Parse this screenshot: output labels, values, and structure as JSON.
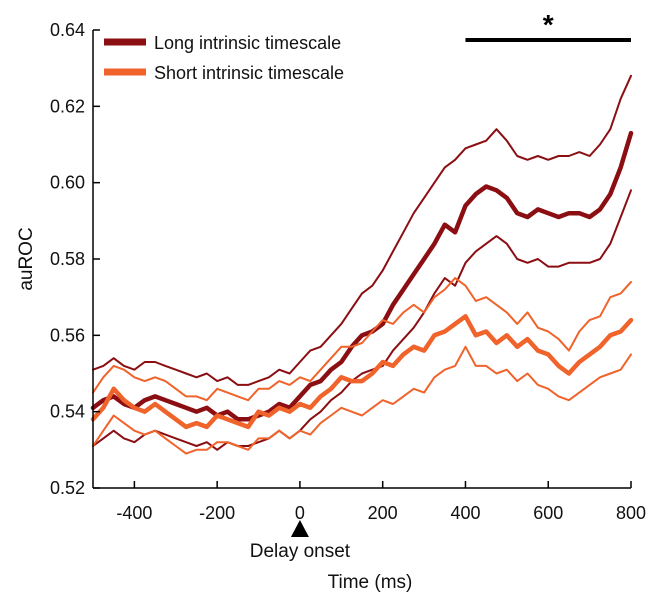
{
  "chart_data": {
    "type": "line",
    "xlabel": "Time (ms)",
    "ylabel": "auROC",
    "xlim": [
      -500,
      800
    ],
    "ylim": [
      0.52,
      0.64
    ],
    "xticks": [
      -400,
      -200,
      0,
      200,
      400,
      600,
      800
    ],
    "xtick_labels": [
      "-400",
      "-200",
      "0",
      "200",
      "400",
      "600",
      "800"
    ],
    "yticks": [
      0.52,
      0.54,
      0.56,
      0.58,
      0.6,
      0.62,
      0.64
    ],
    "ytick_labels": [
      "0.52",
      "0.54",
      "0.56",
      "0.58",
      "0.60",
      "0.62",
      "0.64"
    ],
    "legend_position": "top-left",
    "annotations": {
      "event_marker": {
        "x": 0,
        "label": "Delay onset",
        "symbol": "triangle-up"
      },
      "significance": {
        "x_start": 400,
        "x_end": 800,
        "label": "*"
      }
    },
    "x": [
      -500,
      -475,
      -450,
      -425,
      -400,
      -375,
      -350,
      -325,
      -300,
      -275,
      -250,
      -225,
      -200,
      -175,
      -150,
      -125,
      -100,
      -75,
      -50,
      -25,
      0,
      25,
      50,
      75,
      100,
      125,
      150,
      175,
      200,
      225,
      250,
      275,
      300,
      325,
      350,
      375,
      400,
      425,
      450,
      475,
      500,
      525,
      550,
      575,
      600,
      625,
      650,
      675,
      700,
      725,
      750,
      775,
      800
    ],
    "series": [
      {
        "name": "Long intrinsic timescale",
        "color": "#8b0e12",
        "mean": [
          0.541,
          0.543,
          0.544,
          0.542,
          0.541,
          0.543,
          0.544,
          0.543,
          0.542,
          0.541,
          0.54,
          0.541,
          0.539,
          0.54,
          0.538,
          0.538,
          0.539,
          0.54,
          0.542,
          0.541,
          0.544,
          0.547,
          0.548,
          0.551,
          0.553,
          0.557,
          0.56,
          0.561,
          0.563,
          0.568,
          0.572,
          0.576,
          0.58,
          0.584,
          0.589,
          0.587,
          0.594,
          0.597,
          0.599,
          0.598,
          0.596,
          0.592,
          0.591,
          0.593,
          0.592,
          0.591,
          0.592,
          0.592,
          0.591,
          0.593,
          0.597,
          0.604,
          0.613
        ],
        "upper": [
          0.551,
          0.552,
          0.554,
          0.552,
          0.551,
          0.553,
          0.553,
          0.552,
          0.551,
          0.55,
          0.549,
          0.55,
          0.548,
          0.549,
          0.547,
          0.547,
          0.548,
          0.549,
          0.551,
          0.55,
          0.553,
          0.556,
          0.557,
          0.56,
          0.563,
          0.567,
          0.571,
          0.573,
          0.577,
          0.582,
          0.587,
          0.592,
          0.596,
          0.6,
          0.604,
          0.606,
          0.609,
          0.61,
          0.611,
          0.614,
          0.611,
          0.607,
          0.606,
          0.607,
          0.606,
          0.607,
          0.607,
          0.608,
          0.607,
          0.61,
          0.614,
          0.622,
          0.628
        ],
        "lower": [
          0.531,
          0.533,
          0.535,
          0.533,
          0.532,
          0.534,
          0.535,
          0.534,
          0.533,
          0.532,
          0.531,
          0.532,
          0.53,
          0.532,
          0.531,
          0.531,
          0.532,
          0.533,
          0.535,
          0.533,
          0.535,
          0.538,
          0.54,
          0.543,
          0.545,
          0.548,
          0.55,
          0.551,
          0.552,
          0.556,
          0.559,
          0.562,
          0.566,
          0.571,
          0.575,
          0.573,
          0.579,
          0.582,
          0.584,
          0.586,
          0.584,
          0.58,
          0.579,
          0.58,
          0.578,
          0.578,
          0.579,
          0.579,
          0.579,
          0.58,
          0.584,
          0.591,
          0.598
        ]
      },
      {
        "name": "Short intrinsic timescale",
        "color": "#f0632a",
        "mean": [
          0.538,
          0.541,
          0.546,
          0.543,
          0.541,
          0.54,
          0.542,
          0.54,
          0.538,
          0.536,
          0.537,
          0.536,
          0.539,
          0.538,
          0.537,
          0.536,
          0.54,
          0.539,
          0.541,
          0.54,
          0.542,
          0.541,
          0.544,
          0.546,
          0.549,
          0.548,
          0.548,
          0.55,
          0.553,
          0.552,
          0.555,
          0.557,
          0.556,
          0.56,
          0.561,
          0.563,
          0.565,
          0.56,
          0.561,
          0.558,
          0.56,
          0.557,
          0.559,
          0.556,
          0.555,
          0.552,
          0.55,
          0.553,
          0.555,
          0.557,
          0.56,
          0.561,
          0.564
        ],
        "upper": [
          0.545,
          0.549,
          0.552,
          0.551,
          0.549,
          0.548,
          0.549,
          0.548,
          0.546,
          0.544,
          0.544,
          0.543,
          0.546,
          0.545,
          0.544,
          0.543,
          0.546,
          0.546,
          0.548,
          0.547,
          0.549,
          0.548,
          0.551,
          0.554,
          0.557,
          0.557,
          0.558,
          0.561,
          0.564,
          0.563,
          0.566,
          0.568,
          0.566,
          0.57,
          0.572,
          0.575,
          0.573,
          0.569,
          0.57,
          0.568,
          0.566,
          0.563,
          0.566,
          0.562,
          0.561,
          0.559,
          0.556,
          0.561,
          0.564,
          0.565,
          0.57,
          0.571,
          0.574
        ],
        "lower": [
          0.531,
          0.535,
          0.539,
          0.537,
          0.535,
          0.534,
          0.535,
          0.533,
          0.531,
          0.529,
          0.53,
          0.53,
          0.532,
          0.532,
          0.531,
          0.53,
          0.533,
          0.533,
          0.535,
          0.533,
          0.535,
          0.534,
          0.537,
          0.539,
          0.541,
          0.54,
          0.539,
          0.541,
          0.543,
          0.542,
          0.544,
          0.546,
          0.545,
          0.549,
          0.551,
          0.552,
          0.557,
          0.552,
          0.552,
          0.55,
          0.551,
          0.548,
          0.55,
          0.547,
          0.546,
          0.544,
          0.543,
          0.545,
          0.547,
          0.549,
          0.55,
          0.551,
          0.555
        ]
      }
    ]
  }
}
